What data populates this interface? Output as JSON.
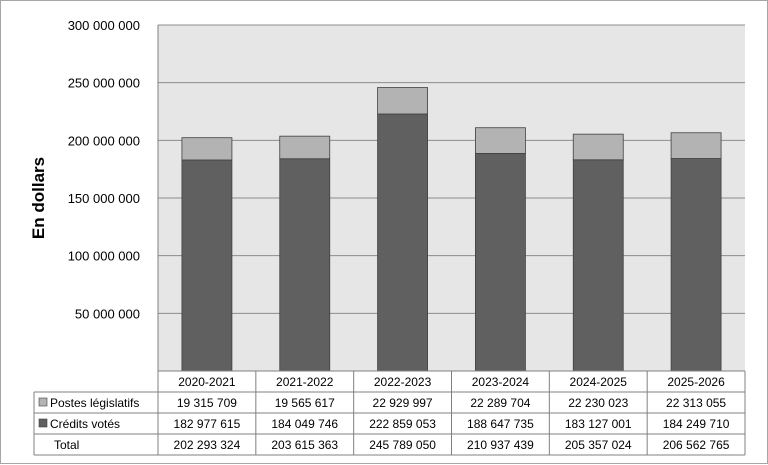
{
  "chart_data": {
    "type": "bar",
    "stacked": true,
    "ylabel": "En dollars",
    "ylim": [
      0,
      300000000
    ],
    "yticks": [
      {
        "value": 50000000,
        "label": "50 000 000"
      },
      {
        "value": 100000000,
        "label": "100 000 000"
      },
      {
        "value": 150000000,
        "label": "150 000 000"
      },
      {
        "value": 200000000,
        "label": "200 000 000"
      },
      {
        "value": 250000000,
        "label": "250 000 000"
      },
      {
        "value": 300000000,
        "label": "300 000 000"
      }
    ],
    "grid": true,
    "legend": "data-table",
    "categories": [
      "2020-2021",
      "2021-2022",
      "2022-2023",
      "2023-2024",
      "2024-2025",
      "2025-2026"
    ],
    "series": [
      {
        "name": "Postes législatifs",
        "color": "#b3b3b3",
        "values": [
          19315709,
          19565617,
          22929997,
          22289704,
          22230023,
          22313055
        ],
        "labels": [
          "19 315 709",
          "19 565 617",
          "22 929 997",
          "22 289 704",
          "22 230 023",
          "22 313 055"
        ]
      },
      {
        "name": "Crédits votés",
        "color": "#606060",
        "values": [
          182977615,
          184049746,
          222859053,
          188647735,
          183127001,
          184249710
        ],
        "labels": [
          "182 977 615",
          "184 049 746",
          "222 859 053",
          "188 647 735",
          "183 127 001",
          "184 249 710"
        ]
      }
    ],
    "total": {
      "name": "Total",
      "values": [
        202293324,
        203615363,
        245789050,
        210937439,
        205357024,
        206562765
      ],
      "labels": [
        "202 293 324",
        "203 615 363",
        "245 789 050",
        "210 937 439",
        "205 357 024",
        "206 562 765"
      ]
    }
  },
  "colors": {
    "plot_background": "#e6e6e6",
    "gridline": "#8c8c8c",
    "border": "#808080"
  }
}
